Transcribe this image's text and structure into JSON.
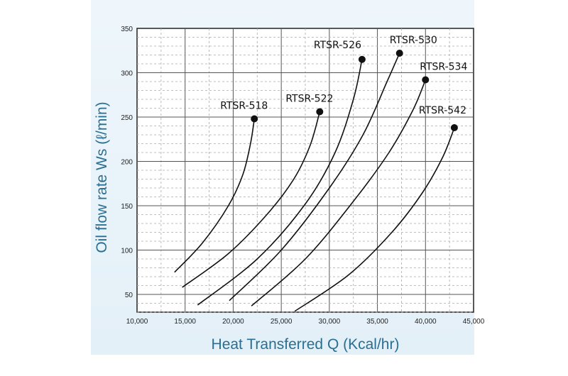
{
  "chart_data": {
    "type": "line",
    "xlabel": "Heat Transferred Q (Kcal/hr)",
    "ylabel": "Oil flow rate Ws (ℓ/min)",
    "xlim": [
      10000,
      45000
    ],
    "ylim": [
      30,
      350
    ],
    "x_ticks": [
      "10,000",
      "15,000",
      "20,000",
      "25,000",
      "30,000",
      "35,000",
      "40,000",
      "45,000"
    ],
    "y_ticks": [
      "50",
      "100",
      "150",
      "200",
      "250",
      "300",
      "350"
    ],
    "x_tick_values": [
      10000,
      15000,
      20000,
      25000,
      30000,
      35000,
      40000,
      45000
    ],
    "y_tick_values": [
      50,
      100,
      150,
      200,
      250,
      300,
      350
    ],
    "grid": true,
    "series": [
      {
        "name": "RTSR-518",
        "x": [
          13900,
          16800,
          19500,
          21000,
          21800,
          22200
        ],
        "y": [
          75,
          108,
          150,
          185,
          220,
          248
        ]
      },
      {
        "name": "RTSR-522",
        "x": [
          14700,
          19500,
          23500,
          26300,
          28000,
          29000
        ],
        "y": [
          58,
          96,
          140,
          180,
          218,
          256
        ]
      },
      {
        "name": "RTSR-526",
        "x": [
          16300,
          22500,
          27500,
          30600,
          32500,
          33400
        ],
        "y": [
          38,
          90,
          152,
          210,
          270,
          315
        ]
      },
      {
        "name": "RTSR-530",
        "x": [
          19600,
          25000,
          30000,
          33500,
          36000,
          37300
        ],
        "y": [
          43,
          100,
          170,
          230,
          290,
          322
        ]
      },
      {
        "name": "RTSR-534",
        "x": [
          21900,
          27500,
          32500,
          36200,
          38700,
          40000
        ],
        "y": [
          37,
          90,
          155,
          210,
          258,
          292
        ]
      },
      {
        "name": "RTSR-542",
        "x": [
          26400,
          32000,
          36500,
          39700,
          41800,
          43000
        ],
        "y": [
          31,
          72,
          120,
          165,
          205,
          238
        ]
      }
    ]
  }
}
